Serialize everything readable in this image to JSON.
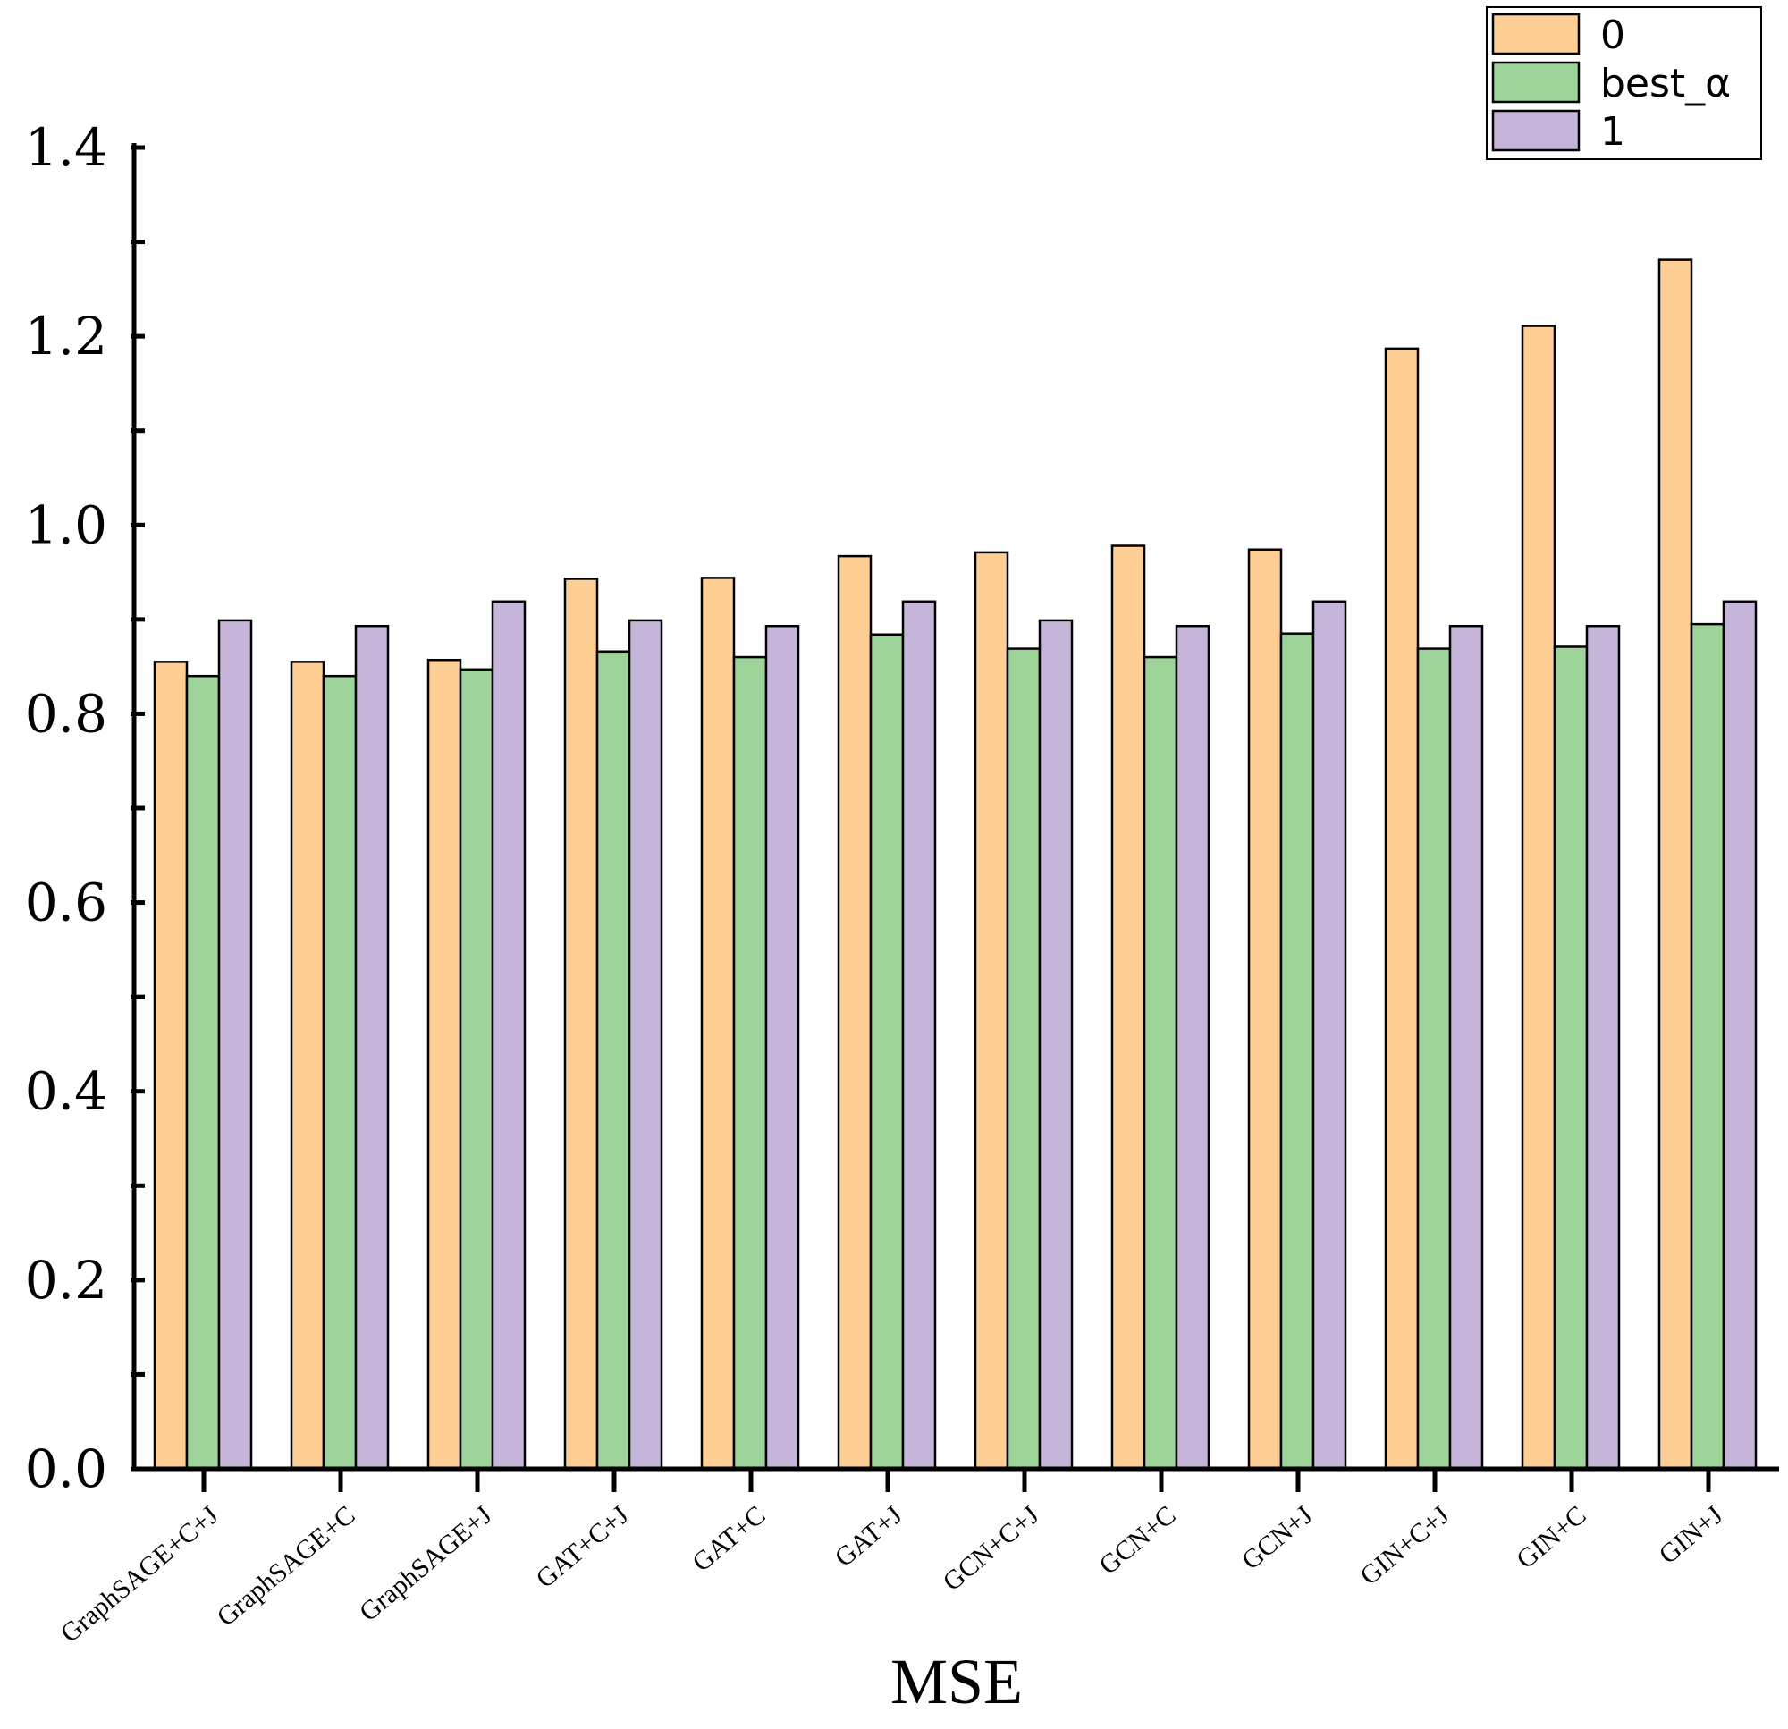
{
  "chart_data": {
    "type": "bar",
    "title": "",
    "xlabel": "MSE",
    "ylabel": "",
    "ylim": [
      0,
      1.4
    ],
    "yticks": [
      "0.0",
      "0.2",
      "0.4",
      "0.6",
      "0.8",
      "1.0",
      "1.2",
      "1.4"
    ],
    "categories": [
      "GraphSAGE+C+J",
      "GraphSAGE+C",
      "GraphSAGE+J",
      "GAT+C+J",
      "GAT+C",
      "GAT+J",
      "GCN+C+J",
      "GCN+C",
      "GCN+J",
      "GIN+C+J",
      "GIN+C",
      "GIN+J"
    ],
    "series": [
      {
        "name": "0",
        "color": "#FECE94",
        "values": [
          0.855,
          0.855,
          0.857,
          0.943,
          0.944,
          0.967,
          0.971,
          0.978,
          0.974,
          1.187,
          1.211,
          1.281
        ]
      },
      {
        "name": "best_α",
        "color": "#9ED39A",
        "values": [
          0.84,
          0.84,
          0.847,
          0.866,
          0.86,
          0.884,
          0.869,
          0.86,
          0.885,
          0.869,
          0.871,
          0.895
        ]
      },
      {
        "name": "1",
        "color": "#C5B5D9",
        "values": [
          0.899,
          0.893,
          0.919,
          0.899,
          0.893,
          0.919,
          0.899,
          0.893,
          0.919,
          0.893,
          0.893,
          0.919
        ]
      }
    ],
    "grid": false,
    "legend_position": "top-right"
  }
}
